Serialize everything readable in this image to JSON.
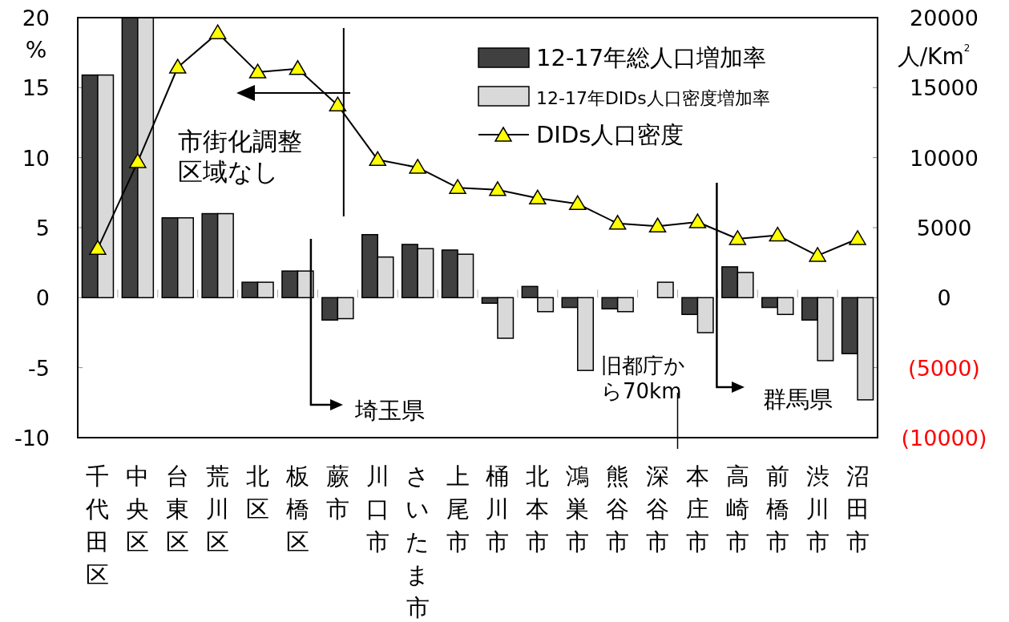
{
  "chart_data": {
    "type": "bar",
    "ylabel": "%",
    "y2label": "人/Km$^{2}$",
    "categories": [
      "千代田区",
      "中央区",
      "台東区",
      "荒川区",
      "北区",
      "板橋区",
      "蕨市",
      "川口市",
      "さいたま市",
      "上尾市",
      "桶川市",
      "北本市",
      "鴻巣市",
      "熊谷市",
      "深谷市",
      "本庄市",
      "高崎市",
      "前橋市",
      "渋川市",
      "沼田市"
    ],
    "series": [
      {
        "name": "12-17年総人口増加率",
        "color": "#404040",
        "values": [
          15.9,
          20,
          5.7,
          6.0,
          1.1,
          1.9,
          -1.6,
          4.5,
          3.8,
          3.4,
          -0.4,
          0.8,
          -0.7,
          -0.8,
          0,
          -1.2,
          2.2,
          -0.7,
          -1.6,
          -4.0
        ]
      },
      {
        "name": "12-17年DIDs人口密度増加率",
        "color": "#d9d9d9",
        "values": [
          15.9,
          20,
          5.7,
          6.0,
          1.1,
          1.9,
          -1.5,
          2.9,
          3.5,
          3.1,
          -2.9,
          -1.0,
          -5.2,
          -1.0,
          1.1,
          -2.5,
          1.8,
          -1.2,
          -4.5,
          -7.3
        ]
      },
      {
        "name": "DIDs人口密度",
        "type": "line",
        "axis": "y2",
        "color": "#000000",
        "marker": "triangle",
        "values": [
          3500,
          9700,
          16450,
          18900,
          16100,
          16350,
          13750,
          9850,
          9300,
          7850,
          7700,
          7100,
          6700,
          5300,
          5100,
          5400,
          4200,
          4450,
          3000,
          4200
        ]
      }
    ],
    "ylim": [
      -10,
      20
    ],
    "yticks": [
      -10,
      -5,
      0,
      5,
      10,
      15,
      20
    ],
    "y2lim": [
      -10000,
      20000
    ],
    "y2ticks": [
      {
        "value": -10000,
        "label": "(10000)"
      },
      {
        "value": -5000,
        "label": "(5000)"
      },
      0,
      5000,
      10000,
      15000,
      20000
    ],
    "legend": "top right",
    "grid": false,
    "annotations": [
      "市街化調整区域なし",
      "埼玉県",
      "旧都庁から70km",
      "群馬県"
    ]
  }
}
